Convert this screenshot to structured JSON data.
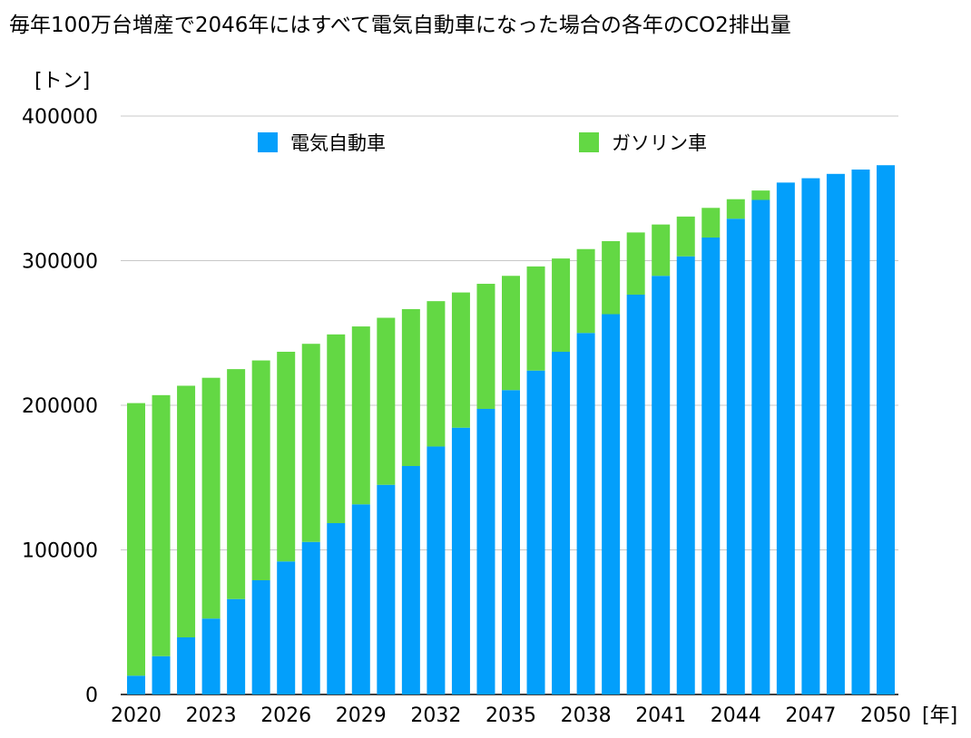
{
  "chart_data": {
    "type": "bar",
    "stacked": true,
    "title": "毎年100万台増産で2046年にはすべて電気自動車になった場合の各年のCO2排出量",
    "ylabel": "[トン]",
    "xlabel": "[年]",
    "ylim": [
      0,
      400000
    ],
    "yticks": [
      0,
      100000,
      200000,
      300000,
      400000
    ],
    "ytick_labels": [
      "0",
      "100000",
      "200000",
      "300000",
      "400000"
    ],
    "grid": true,
    "legend_position": "top",
    "categories": [
      2020,
      2021,
      2022,
      2023,
      2024,
      2025,
      2026,
      2027,
      2028,
      2029,
      2030,
      2031,
      2032,
      2033,
      2034,
      2035,
      2036,
      2037,
      2038,
      2039,
      2040,
      2041,
      2042,
      2043,
      2044,
      2045,
      2046,
      2047,
      2048,
      2049,
      2050
    ],
    "xtick_labels": [
      "2020",
      "2023",
      "2026",
      "2029",
      "2032",
      "2035",
      "2038",
      "2041",
      "2044",
      "2047",
      "2050"
    ],
    "xtick_values": [
      2020,
      2023,
      2026,
      2029,
      2032,
      2035,
      2038,
      2041,
      2044,
      2047,
      2050
    ],
    "series": [
      {
        "name": "電気自動車",
        "color": "#039ffb",
        "values": [
          13000,
          26500,
          39500,
          52500,
          66000,
          79000,
          92000,
          105500,
          118500,
          131500,
          145000,
          158000,
          171500,
          184500,
          197500,
          210500,
          224000,
          237000,
          250000,
          263000,
          276500,
          289500,
          303000,
          316000,
          329000,
          342000,
          354000,
          357000,
          360000,
          363000,
          366000
        ]
      },
      {
        "name": "ガソリン車",
        "color": "#63d844",
        "values": [
          188500,
          180500,
          174000,
          166500,
          159000,
          152000,
          145000,
          137000,
          130500,
          123000,
          115500,
          108500,
          100500,
          93500,
          86500,
          79000,
          72000,
          64500,
          58000,
          50500,
          43000,
          35500,
          27500,
          20500,
          13500,
          6500,
          0,
          0,
          0,
          0,
          0
        ]
      }
    ]
  }
}
